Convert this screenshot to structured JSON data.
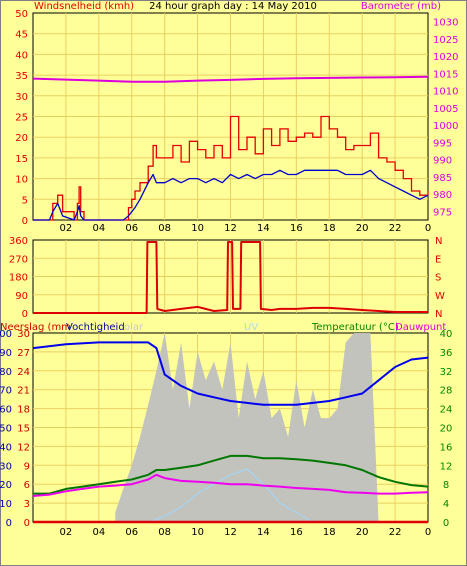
{
  "header": {
    "title": "24 hour graph day : 14 May 2010",
    "left_label": "Windsnelheid (kmh)",
    "right_label": "Barometer (mb)"
  },
  "bottom_header": {
    "labels": [
      "Neerslag (mm",
      "Vochtigheid",
      "olar",
      "UV",
      "Temperatuur (°C)",
      "Dauwpunt"
    ]
  },
  "colors": {
    "background": "#ffff99",
    "wind_gust": "#e60000",
    "wind_avg": "#0000cc",
    "barometer": "#dd00dd",
    "direction": "#dd0000",
    "humidity": "#0000ee",
    "solar": "#c0c0c0",
    "uv": "#a0d8ff",
    "temperature": "#007700",
    "dewpoint": "#ee00ee",
    "rain": "#e00000",
    "temp_axis": "#008800"
  },
  "chart_data": [
    {
      "type": "line",
      "title": "24 hour graph day : 14 May 2010",
      "ylabel": "Windsnelheid (kmh)",
      "y2label": "Barometer (mb)",
      "x_ticks": [
        "02",
        "04",
        "06",
        "08",
        "10",
        "12",
        "14",
        "16",
        "18",
        "20",
        "22",
        "0"
      ],
      "y_ticks": [
        0,
        5,
        10,
        15,
        20,
        25,
        30,
        35,
        40,
        45,
        50
      ],
      "y2_ticks": [
        975,
        980,
        985,
        990,
        995,
        1000,
        1005,
        1010,
        1015,
        1020,
        1025,
        1030
      ],
      "ylim": [
        0,
        50
      ],
      "y2lim": [
        972.5,
        1032.5
      ],
      "x_range_hours": [
        0,
        24
      ],
      "series": [
        {
          "name": "Windsnelheid (kmh)",
          "axis": "left",
          "x": [
            0,
            1,
            1.2,
            1.5,
            1.8,
            2.5,
            2.7,
            2.8,
            2.9,
            3.1,
            4,
            5.5,
            5.8,
            6,
            6.2,
            6.5,
            7,
            7.3,
            7.5,
            7.8,
            8,
            8.5,
            9,
            9.5,
            10,
            10.5,
            11,
            11.5,
            12,
            12.5,
            13,
            13.5,
            14,
            14.5,
            15,
            15.5,
            16,
            16.5,
            17,
            17.5,
            18,
            18.5,
            19,
            19.5,
            20,
            20.5,
            21,
            21.5,
            22,
            22.5,
            23,
            23.5,
            24
          ],
          "values": [
            0,
            0,
            2,
            4,
            1,
            0,
            2,
            3.5,
            1,
            0,
            0,
            0,
            1,
            2,
            3,
            5,
            9,
            11,
            9,
            9,
            9,
            10,
            9,
            10,
            10,
            9,
            10,
            9,
            11,
            10,
            11,
            10,
            11,
            11,
            12,
            11,
            11,
            12,
            12,
            12,
            12,
            12,
            11,
            11,
            11,
            12,
            10,
            9,
            8,
            7,
            6,
            5,
            6
          ]
        },
        {
          "name": "Windstoten (kmh)",
          "axis": "left",
          "x": [
            0,
            1,
            1.2,
            1.5,
            1.8,
            2.5,
            2.7,
            2.8,
            2.9,
            3.1,
            4,
            5.5,
            5.8,
            6,
            6.2,
            6.5,
            7,
            7.3,
            7.5,
            7.8,
            8,
            8.5,
            9,
            9.5,
            10,
            10.5,
            11,
            11.5,
            12,
            12.5,
            13,
            13.5,
            14,
            14.5,
            15,
            15.5,
            16,
            16.5,
            17,
            17.5,
            18,
            18.5,
            19,
            19.5,
            20,
            20.5,
            21,
            21.5,
            22,
            22.5,
            23,
            23.5,
            24
          ],
          "values": [
            0,
            0,
            4,
            6,
            2,
            0,
            4,
            8,
            2,
            0,
            0,
            0,
            3,
            5,
            7,
            9,
            13,
            18,
            15,
            15,
            15,
            18,
            14,
            19,
            17,
            15,
            18,
            15,
            25,
            17,
            20,
            16,
            22,
            18,
            22,
            19,
            20,
            21,
            20,
            25,
            22,
            20,
            17,
            18,
            18,
            21,
            15,
            14,
            12,
            10,
            7,
            6,
            7
          ]
        },
        {
          "name": "Barometer (mb)",
          "axis": "right",
          "x": [
            0,
            2,
            4,
            6,
            8,
            10,
            12,
            14,
            16,
            18,
            20,
            22,
            24
          ],
          "values": [
            1013.5,
            1013.2,
            1012.9,
            1012.6,
            1012.6,
            1012.9,
            1013.1,
            1013.4,
            1013.6,
            1013.7,
            1013.8,
            1013.9,
            1014.0
          ]
        }
      ]
    },
    {
      "type": "line",
      "y_ticks": [
        0,
        90,
        180,
        270,
        360
      ],
      "y2_ticks": [
        "N",
        "W",
        "S",
        "E",
        "N"
      ],
      "ylim": [
        0,
        360
      ],
      "series": [
        {
          "name": "Windrichting",
          "x": [
            0,
            1,
            2,
            3,
            4,
            5,
            6,
            6.9,
            6.95,
            7.5,
            7.55,
            8,
            9,
            10,
            11,
            11.8,
            11.85,
            12.1,
            12.15,
            12.6,
            12.65,
            13.8,
            13.85,
            14.5,
            15,
            16,
            17,
            18,
            19,
            20,
            21,
            22,
            23,
            24
          ],
          "values": [
            0,
            0,
            0,
            0,
            0,
            0,
            0,
            0,
            350,
            350,
            20,
            10,
            20,
            30,
            10,
            15,
            350,
            350,
            20,
            20,
            350,
            350,
            20,
            15,
            20,
            20,
            25,
            25,
            20,
            15,
            10,
            5,
            5,
            5
          ]
        }
      ]
    },
    {
      "type": "line",
      "labels": [
        "Neerslag (mm",
        "Vochtigheid",
        "olar",
        "UV",
        "Temperatuur (°C)",
        "Dauwpunt"
      ],
      "x_ticks": [
        "02",
        "04",
        "06",
        "08",
        "10",
        "12",
        "14",
        "16",
        "18",
        "20",
        "22",
        "0"
      ],
      "y_ticks_left": [
        0,
        10,
        20,
        30,
        40,
        50,
        60,
        70,
        80,
        90,
        100
      ],
      "y_ticks_left2": [
        0,
        3,
        6,
        9,
        12,
        15,
        18,
        21,
        24,
        27,
        30
      ],
      "y_ticks_right": [
        0,
        4,
        8,
        12,
        16,
        20,
        24,
        28,
        32,
        36,
        40
      ],
      "series": [
        {
          "name": "Vochtigheid",
          "x": [
            0,
            2,
            4,
            6,
            7,
            7.5,
            8,
            9,
            10,
            11,
            12,
            13,
            14,
            15,
            16,
            17,
            18,
            19,
            20,
            21,
            22,
            23,
            24
          ],
          "values": [
            92,
            94,
            95,
            95,
            95,
            92,
            78,
            72,
            68,
            66,
            64,
            63,
            62,
            62,
            62,
            63,
            64,
            66,
            68,
            75,
            82,
            86,
            87
          ]
        },
        {
          "name": "Temperatuur (°C)",
          "x": [
            0,
            1,
            2,
            3,
            4,
            5,
            6,
            7,
            7.5,
            8,
            9,
            10,
            11,
            12,
            13,
            14,
            15,
            16,
            17,
            18,
            19,
            20,
            21,
            22,
            23,
            24
          ],
          "values": [
            6,
            6,
            7,
            7.5,
            8,
            8.5,
            9,
            10,
            11,
            11,
            11.5,
            12,
            13,
            14,
            14,
            13.5,
            13.5,
            13.3,
            13,
            12.5,
            12,
            11,
            9.5,
            8.5,
            7.8,
            7.5
          ]
        },
        {
          "name": "Dauwpunt",
          "x": [
            0,
            1,
            2,
            3,
            4,
            5,
            6,
            7,
            7.5,
            8,
            9,
            10,
            11,
            12,
            13,
            14,
            15,
            16,
            17,
            18,
            19,
            20,
            21,
            22,
            23,
            24
          ],
          "values": [
            5.5,
            5.8,
            6.5,
            7,
            7.5,
            7.7,
            8,
            9,
            10,
            9.3,
            8.7,
            8.5,
            8.3,
            8,
            8,
            7.7,
            7.5,
            7.2,
            7,
            6.8,
            6.3,
            6.2,
            6,
            6,
            6.2,
            6.3
          ]
        },
        {
          "name": "olar",
          "x": [
            5,
            5.5,
            6,
            6.5,
            7,
            7.5,
            8,
            8.5,
            9,
            9.5,
            10,
            10.5,
            11,
            11.5,
            12,
            12.5,
            13,
            13.5,
            14,
            14.5,
            15,
            15.5,
            16,
            16.5,
            17,
            17.5,
            18,
            18.5,
            19,
            19.5,
            20,
            20.5,
            21
          ],
          "values": [
            5,
            18,
            30,
            45,
            62,
            80,
            100,
            70,
            95,
            60,
            90,
            75,
            85,
            70,
            95,
            55,
            85,
            65,
            80,
            55,
            60,
            45,
            75,
            50,
            70,
            55,
            55,
            60,
            95,
            100,
            100,
            100,
            0
          ]
        },
        {
          "name": "UV",
          "x": [
            7,
            8,
            9,
            10,
            11,
            12,
            13,
            14,
            15,
            16,
            17
          ],
          "values": [
            0,
            3,
            8,
            15,
            20,
            25,
            28,
            20,
            10,
            5,
            0
          ]
        },
        {
          "name": "Neerslag (mm",
          "x": [
            0,
            24
          ],
          "values": [
            0,
            0
          ]
        }
      ]
    }
  ]
}
